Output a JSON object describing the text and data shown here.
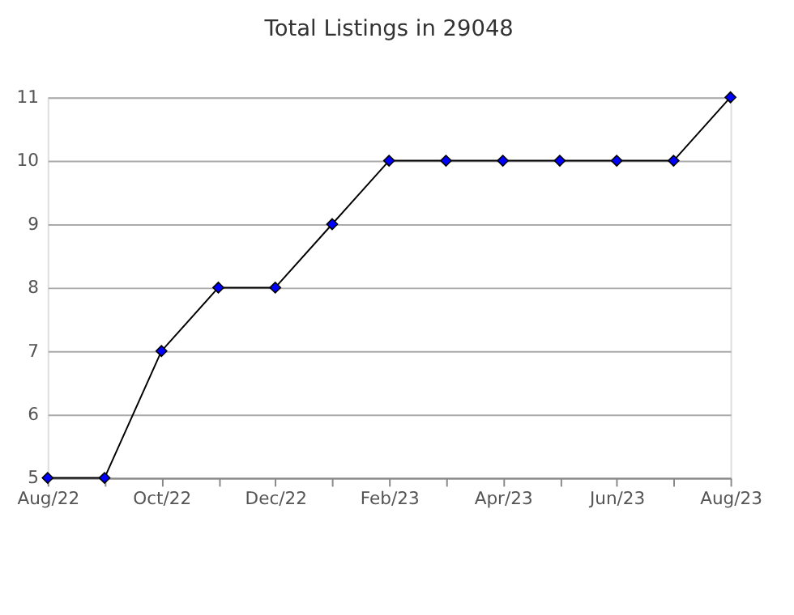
{
  "chart_data": {
    "type": "line",
    "title": "Total Listings in 29048",
    "categories": [
      "Aug/22",
      null,
      "Oct/22",
      null,
      "Dec/22",
      null,
      "Feb/23",
      null,
      "Apr/23",
      null,
      "Jun/23",
      null,
      "Aug/23"
    ],
    "series": [
      {
        "color": "#0000ff",
        "values": [
          5,
          5,
          7,
          8,
          8,
          9,
          10,
          10,
          10,
          10,
          10,
          10,
          11
        ]
      }
    ],
    "ylim": [
      5,
      11
    ],
    "yticks": [
      5,
      6,
      7,
      8,
      9,
      10,
      11
    ],
    "grid": "y",
    "marker": "diamond",
    "line_style": "solid"
  }
}
